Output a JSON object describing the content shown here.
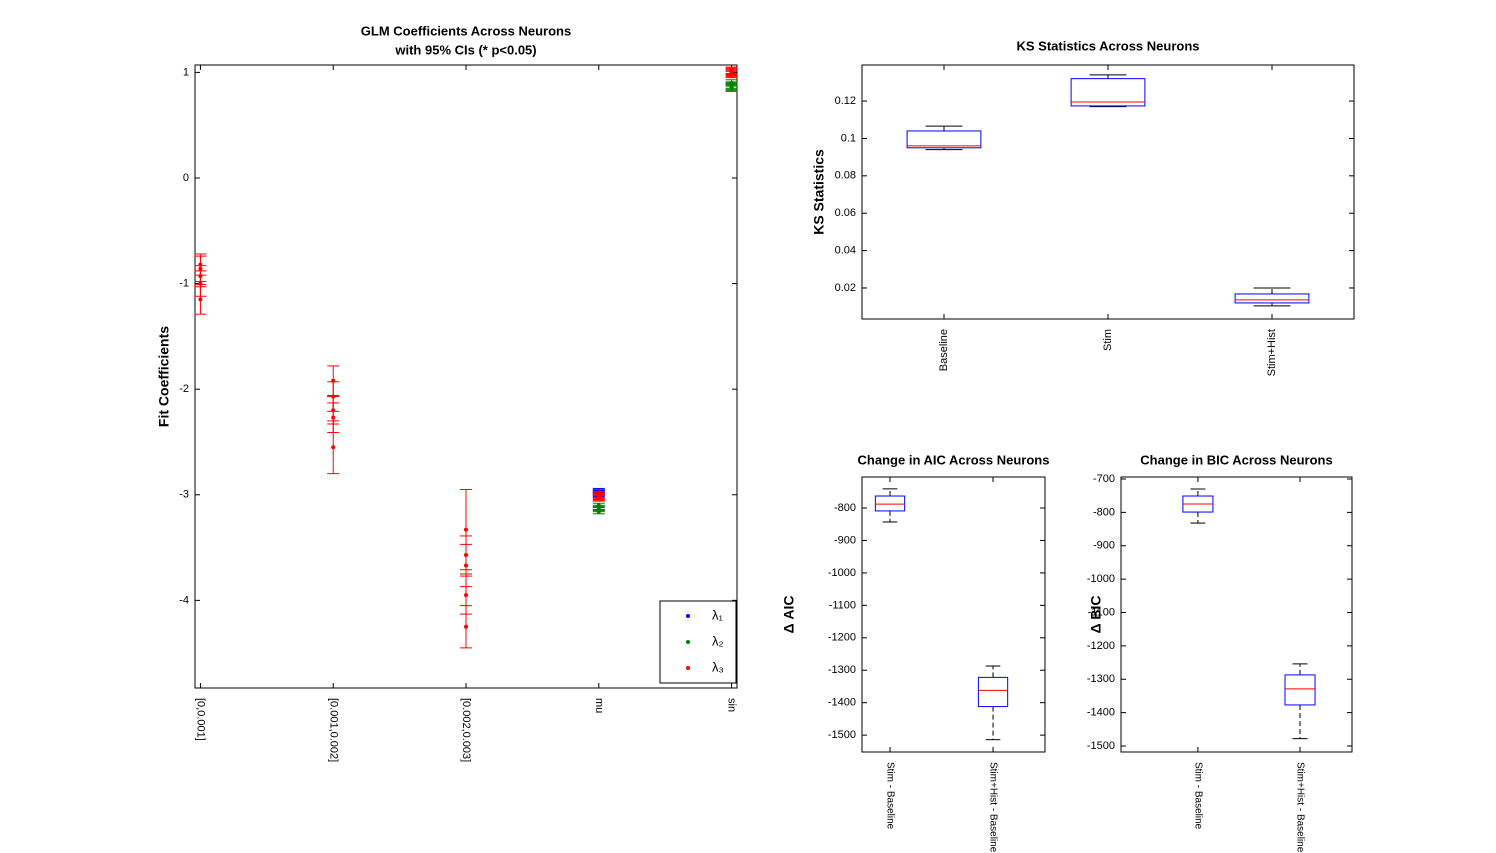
{
  "chart_data": [
    {
      "type": "errorbar",
      "title": "GLM Coefficients Across Neurons",
      "subtitle": "with 95% CIs (* p<0.05)",
      "ylabel": "Fit Coefficients",
      "categories": [
        "[0,0.001]",
        "[0.001,0.002]",
        "[0.002,0.003]",
        "mu",
        "sin"
      ],
      "ylim": [
        -4.83,
        1.07
      ],
      "yticks": [
        -4,
        -3,
        -2,
        -1,
        0,
        1
      ],
      "legend": "lower right",
      "series": [
        {
          "name": "λ₁",
          "color": "#0000ff",
          "values": [
            null,
            null,
            null,
            [
              -2.96,
              -2.97,
              -2.98,
              -2.99,
              -3.0
            ],
            null
          ],
          "errors": [
            null,
            null,
            null,
            [
              0.02,
              0.02,
              0.02,
              0.02,
              0.02
            ],
            null
          ]
        },
        {
          "name": "λ₂",
          "color": "#008000",
          "values": [
            null,
            null,
            null,
            [
              -3.1,
              -3.12,
              -3.13,
              -3.14,
              -3.16
            ],
            [
              0.85,
              0.86,
              0.87,
              0.88,
              0.9
            ]
          ],
          "errors": [
            null,
            null,
            null,
            [
              0.02,
              0.02,
              0.02,
              0.02,
              0.02
            ],
            [
              0.03,
              0.03,
              0.03,
              0.03,
              0.03
            ]
          ]
        },
        {
          "name": "λ₃",
          "color": "#ff0000",
          "values": [
            [
              -0.82,
              -0.86,
              -0.93,
              -1.0,
              -1.15
            ],
            [
              -1.92,
              -2.07,
              -2.2,
              -2.27,
              -2.55
            ],
            [
              -3.33,
              -3.57,
              -3.67,
              -3.95,
              -4.25
            ],
            [
              -2.98,
              -3.0,
              -3.01,
              -3.02,
              -3.03
            ],
            [
              0.98,
              0.99,
              1.0,
              1.01,
              1.02
            ]
          ],
          "errors": [
            [
              0.1,
              0.12,
              0.1,
              0.12,
              0.14
            ],
            [
              0.14,
              0.14,
              0.13,
              0.14,
              0.25
            ],
            [
              0.38,
              0.18,
              0.2,
              0.18,
              0.2
            ],
            [
              0.03,
              0.03,
              0.03,
              0.03,
              0.03
            ],
            [
              0.03,
              0.03,
              0.03,
              0.03,
              0.03
            ]
          ]
        }
      ]
    },
    {
      "type": "box",
      "title": "KS Statistics Across Neurons",
      "ylabel": "KS Statistics",
      "categories": [
        "Baseline",
        "Stim",
        "Stim+Hist"
      ],
      "ylim": [
        0.0034,
        0.1393
      ],
      "yticks": [
        0.02,
        0.04,
        0.06,
        0.08,
        0.1,
        0.12
      ],
      "box_color": "#0000ff",
      "median_color": "#ff0000",
      "boxes": [
        {
          "min": 0.094,
          "q1": 0.095,
          "median": 0.096,
          "q3": 0.104,
          "max": 0.1066
        },
        {
          "min": 0.117,
          "q1": 0.1174,
          "median": 0.1195,
          "q3": 0.132,
          "max": 0.134
        },
        {
          "min": 0.0104,
          "q1": 0.012,
          "median": 0.0136,
          "q3": 0.0168,
          "max": 0.02
        }
      ]
    },
    {
      "type": "box",
      "title": "Change in AIC Across Neurons",
      "ylabel": "Δ AIC",
      "categories": [
        "Stim - Baseline",
        "Stim+Hist - Baseline"
      ],
      "ylim": [
        -1552,
        -704.4
      ],
      "yticks": [
        -1500,
        -1400,
        -1300,
        -1200,
        -1100,
        -1000,
        -900,
        -800
      ],
      "box_color": "#0000ff",
      "median_color": "#ff0000",
      "boxes": [
        {
          "min": -843,
          "q1": -809,
          "median": -788,
          "q3": -763,
          "max": -741
        },
        {
          "min": -1514,
          "q1": -1412,
          "median": -1362,
          "q3": -1322,
          "max": -1287
        }
      ]
    },
    {
      "type": "box",
      "title": "Change in BIC Across Neurons",
      "ylabel": "Δ BIC",
      "categories": [
        "Stim - Baseline",
        "Stim+Hist - Baseline"
      ],
      "ylim": [
        -1518,
        -694
      ],
      "yticks": [
        -1500,
        -1400,
        -1300,
        -1200,
        -1100,
        -1000,
        -900,
        -800,
        -700
      ],
      "box_color": "#0000ff",
      "median_color": "#ff0000",
      "boxes": [
        {
          "min": -832,
          "q1": -799,
          "median": -775,
          "q3": -751,
          "max": -730
        },
        {
          "min": -1478,
          "q1": -1377,
          "median": -1329,
          "q3": -1287,
          "max": -1254
        }
      ]
    }
  ]
}
